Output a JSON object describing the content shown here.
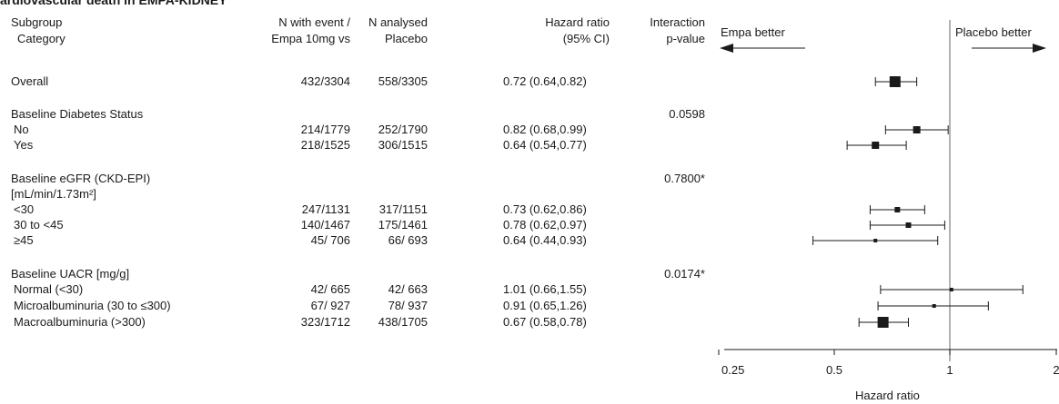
{
  "title": "ardiovascular death in EMPA-KIDNEY",
  "headers": {
    "subgroup_line1": "Subgroup",
    "subgroup_line2": "Category",
    "empa_line1": "N with event /",
    "empa_line2": "Empa 10mg vs",
    "placebo_line1": "N analysed",
    "placebo_line2": "Placebo",
    "hr_line1": "Hazard ratio",
    "hr_line2": "(95% CI)",
    "pint_line1": "Interaction",
    "pint_line2": "p-value"
  },
  "direction_labels": {
    "left": "Empa better",
    "right": "Placebo better"
  },
  "rows": [
    {
      "label": "Overall",
      "indent": false,
      "empa": "432/3304",
      "placebo": "558/3305",
      "hr_text": "0.72 (0.64,0.82)",
      "pint": "",
      "hr": 0.72,
      "lo": 0.64,
      "hi": 0.82,
      "marker": "large"
    },
    {
      "label": "Baseline Diabetes Status",
      "indent": false,
      "empa": "",
      "placebo": "",
      "hr_text": "",
      "pint": "0.0598",
      "marker": "none"
    },
    {
      "label": "No",
      "indent": true,
      "empa": "214/1779",
      "placebo": "252/1790",
      "hr_text": "0.82 (0.68,0.99)",
      "pint": "",
      "hr": 0.82,
      "lo": 0.68,
      "hi": 0.99,
      "marker": "medium"
    },
    {
      "label": "Yes",
      "indent": true,
      "empa": "218/1525",
      "placebo": "306/1515",
      "hr_text": "0.64 (0.54,0.77)",
      "pint": "",
      "hr": 0.64,
      "lo": 0.54,
      "hi": 0.77,
      "marker": "medium"
    },
    {
      "label": "Baseline eGFR (CKD-EPI)",
      "indent": false,
      "empa": "",
      "placebo": "",
      "hr_text": "",
      "pint": "0.7800*",
      "marker": "none"
    },
    {
      "label": "[mL/min/1.73m²]",
      "indent": false,
      "empa": "",
      "placebo": "",
      "hr_text": "",
      "pint": "",
      "marker": "none"
    },
    {
      "label": "<30",
      "indent": true,
      "empa": "247/1131",
      "placebo": "317/1151",
      "hr_text": "0.73 (0.62,0.86)",
      "pint": "",
      "hr": 0.73,
      "lo": 0.62,
      "hi": 0.86,
      "marker": "small"
    },
    {
      "label": "30 to <45",
      "indent": true,
      "empa": "140/1467",
      "placebo": "175/1461",
      "hr_text": "0.78 (0.62,0.97)",
      "pint": "",
      "hr": 0.78,
      "lo": 0.62,
      "hi": 0.97,
      "marker": "small"
    },
    {
      "label": "≥45",
      "indent": true,
      "empa": "45/ 706",
      "placebo": "66/ 693",
      "hr_text": "0.64 (0.44,0.93)",
      "pint": "",
      "hr": 0.64,
      "lo": 0.44,
      "hi": 0.93,
      "marker": "tiny"
    },
    {
      "label": "Baseline UACR [mg/g]",
      "indent": false,
      "empa": "",
      "placebo": "",
      "hr_text": "",
      "pint": "0.0174*",
      "marker": "none"
    },
    {
      "label": "Normal (<30)",
      "indent": true,
      "empa": "42/ 665",
      "placebo": "42/ 663",
      "hr_text": "1.01 (0.66,1.55)",
      "pint": "",
      "hr": 1.01,
      "lo": 0.66,
      "hi": 1.55,
      "marker": "tiny"
    },
    {
      "label": "Microalbuminuria (30 to ≤300)",
      "indent": true,
      "empa": "67/ 927",
      "placebo": "78/ 937",
      "hr_text": "0.91 (0.65,1.26)",
      "pint": "",
      "hr": 0.91,
      "lo": 0.65,
      "hi": 1.26,
      "marker": "tiny"
    },
    {
      "label": "Macroalbuminuria (>300)",
      "indent": true,
      "empa": "323/1712",
      "placebo": "438/1705",
      "hr_text": "0.67 (0.58,0.78)",
      "pint": "",
      "hr": 0.67,
      "lo": 0.58,
      "hi": 0.78,
      "marker": "large"
    }
  ],
  "chart_data": {
    "type": "scatter",
    "title": "ardiovascular death in EMPA-KIDNEY",
    "xlabel": "Hazard ratio",
    "ylabel": "",
    "x_scale": "log",
    "xlim": [
      0.25,
      2
    ],
    "ticks": [
      0.25,
      0.5,
      1,
      2
    ],
    "tick_labels": [
      "0.25",
      "0.5",
      "1",
      "2"
    ],
    "reference_line": 1,
    "grid": false,
    "legend": "none",
    "categories": [
      "Overall",
      "No",
      "Yes",
      "<30",
      "30 to <45",
      "≥45",
      "Normal (<30)",
      "Microalbuminuria (30 to ≤300)",
      "Macroalbuminuria (>300)"
    ],
    "series": [
      {
        "hr": [
          0.72,
          0.82,
          0.64,
          0.73,
          0.78,
          0.64,
          1.01,
          0.91,
          0.67
        ],
        "ci_low": [
          0.64,
          0.68,
          0.54,
          0.62,
          0.62,
          0.44,
          0.66,
          0.65,
          0.58
        ],
        "ci_high": [
          0.82,
          0.99,
          0.77,
          0.86,
          0.97,
          0.93,
          1.55,
          1.26,
          0.78
        ]
      }
    ]
  },
  "colors": {
    "ink": "#1a1a1a",
    "ref_line": "#808080"
  }
}
